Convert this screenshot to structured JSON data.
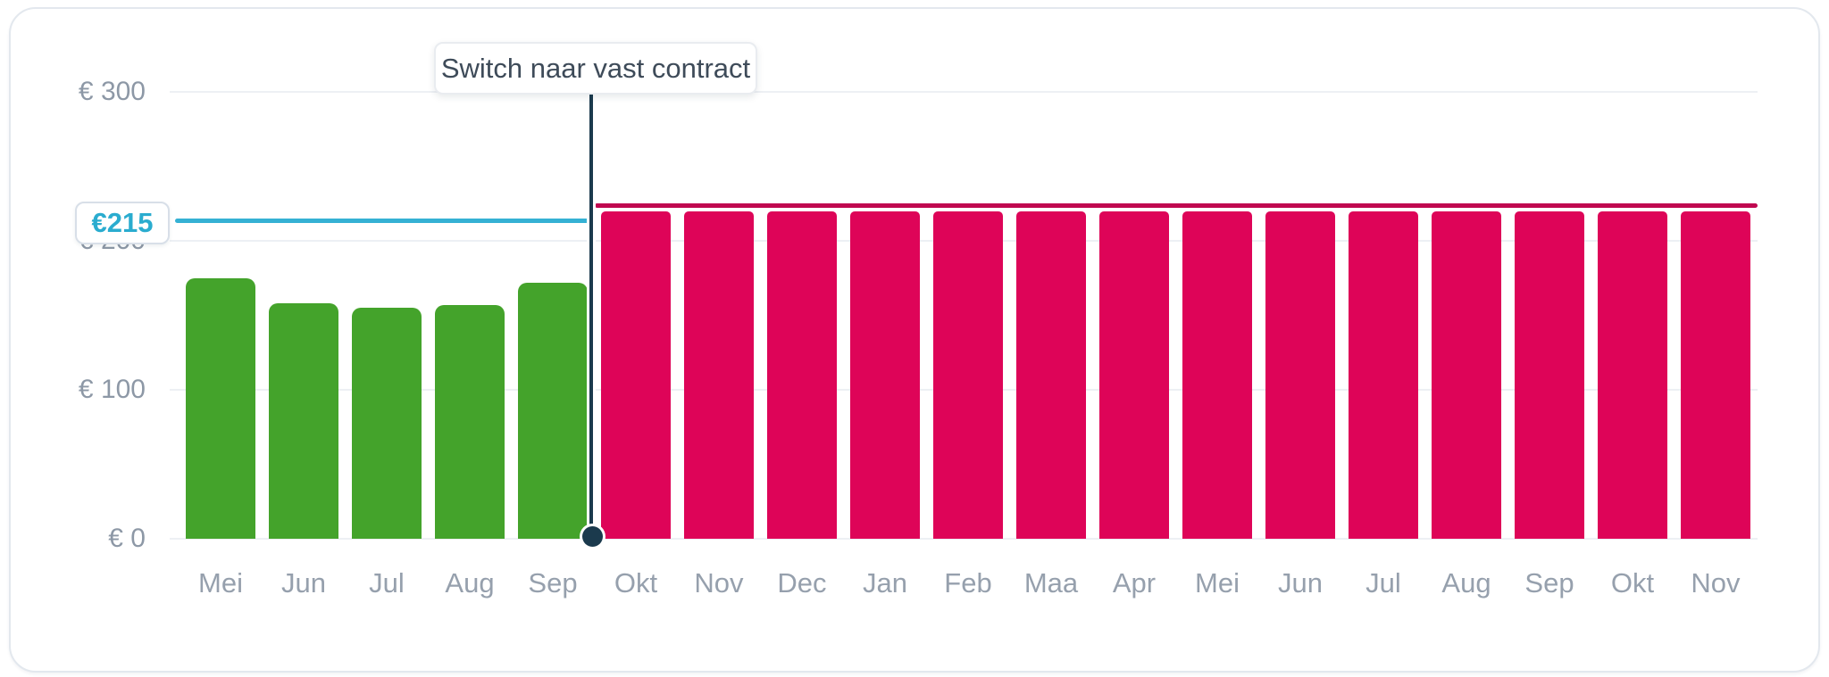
{
  "tooltip": {
    "label": "Switch naar vast contract"
  },
  "price_badge": {
    "label": "€215",
    "value": 215
  },
  "colors": {
    "green_bar": "#44A32B",
    "pink_bar": "#DE0458",
    "fixed_level_line": "#C00850",
    "reference_line": "#35B1D4",
    "badge_text": "#2AACCF",
    "switch_marker": "#1B3A4D",
    "axis_text": "#96A0AD",
    "gridline": "#EDF0F4"
  },
  "chart_data": {
    "type": "bar",
    "title": "",
    "xlabel": "",
    "ylabel": "",
    "categories": [
      "Mei",
      "Jun",
      "Jul",
      "Aug",
      "Sep",
      "Okt",
      "Nov",
      "Dec",
      "Jan",
      "Feb",
      "Maa",
      "Apr",
      "Mei",
      "Jun",
      "Jul",
      "Aug",
      "Sep",
      "Okt",
      "Nov"
    ],
    "values": [
      175,
      158,
      155,
      157,
      172,
      220,
      220,
      220,
      220,
      220,
      220,
      220,
      220,
      220,
      220,
      220,
      220,
      220,
      220
    ],
    "bar_colors": [
      "#44A32B",
      "#44A32B",
      "#44A32B",
      "#44A32B",
      "#44A32B",
      "#DE0458",
      "#DE0458",
      "#DE0458",
      "#DE0458",
      "#DE0458",
      "#DE0458",
      "#DE0458",
      "#DE0458",
      "#DE0458",
      "#DE0458",
      "#DE0458",
      "#DE0458",
      "#DE0458",
      "#DE0458"
    ],
    "ylim": [
      0,
      300
    ],
    "y_ticks": [
      {
        "label": "€ 300",
        "value": 300
      },
      {
        "label": "€ 200",
        "value": 200
      },
      {
        "label": "€ 100",
        "value": 100
      },
      {
        "label": "€ 0",
        "value": 0
      }
    ],
    "grid": true,
    "legend": "none",
    "annotations": {
      "reference_line": {
        "label": "€215",
        "value": 215
      },
      "fixed_level_line": {
        "value": 222
      },
      "switch_marker": {
        "label": "Switch naar vast contract",
        "between_categories": [
          "Sep",
          "Okt"
        ],
        "index": 5
      }
    }
  }
}
